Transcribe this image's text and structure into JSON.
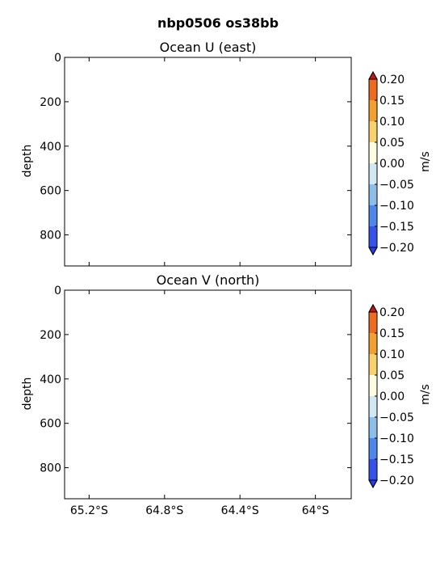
{
  "figure_title": "nbp0506 os38bb",
  "colorbar": {
    "unit": "m/s",
    "levels": [
      -0.2,
      -0.15,
      -0.1,
      -0.05,
      0.0,
      0.05,
      0.1,
      0.15,
      0.2
    ],
    "tick_labels": [
      "−0.20",
      "−0.15",
      "−0.10",
      "−0.05",
      "0.00",
      "0.05",
      "0.10",
      "0.15",
      "0.20"
    ],
    "colors": [
      "#3553e8",
      "#4f86ea",
      "#8fbdea",
      "#d2e6f3",
      "#fdfbe0",
      "#f7d26b",
      "#f2a031",
      "#ee6a1f"
    ],
    "extend_low_color": "#2a3cf0",
    "extend_high_color": "#c8141a"
  },
  "chart_data": [
    {
      "type": "heatmap",
      "title": "Ocean U (east)",
      "xlabel": "",
      "ylabel": "depth",
      "ylim": [
        940,
        0
      ],
      "y_ticks": [
        0,
        200,
        400,
        600,
        800
      ],
      "y_tick_labels": [
        "0",
        "200",
        "400",
        "600",
        "800"
      ],
      "xlim": [
        -65.33,
        -63.81
      ],
      "x_ticks": [
        -65.2,
        -64.8,
        -64.4,
        -64.0
      ],
      "x_tick_labels": [],
      "values": [],
      "colorbar_label": "m/s"
    },
    {
      "type": "heatmap",
      "title": "Ocean V (north)",
      "xlabel": "",
      "ylabel": "depth",
      "ylim": [
        940,
        0
      ],
      "y_ticks": [
        0,
        200,
        400,
        600,
        800
      ],
      "y_tick_labels": [
        "0",
        "200",
        "400",
        "600",
        "800"
      ],
      "xlim": [
        -65.33,
        -63.81
      ],
      "x_ticks": [
        -65.2,
        -64.8,
        -64.4,
        -64.0
      ],
      "x_tick_labels": [
        "65.2°S",
        "64.8°S",
        "64.4°S",
        "64°S"
      ],
      "values": [],
      "colorbar_label": "m/s"
    }
  ]
}
